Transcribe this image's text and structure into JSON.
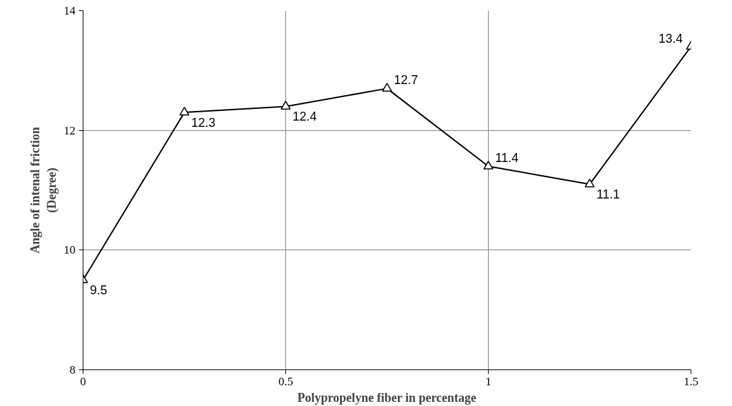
{
  "chart_data": {
    "type": "line",
    "xlabel": "Polypropelyne fiber in percentage",
    "ylabel": "Angle of intenal friction\n(Degree)",
    "x": [
      0,
      0.25,
      0.5,
      0.75,
      1,
      1.25,
      1.5
    ],
    "series": [
      {
        "color": "#000000",
        "values": [
          9.5,
          12.3,
          12.4,
          12.7,
          11.4,
          11.1,
          13.4
        ]
      }
    ],
    "xlim": [
      0,
      1.5
    ],
    "xticks": [
      0,
      0.5,
      1,
      1.5
    ],
    "ylim": [
      8,
      14
    ],
    "yticks": [
      8,
      10,
      12,
      14
    ],
    "grid": true,
    "marker": "triangle",
    "line_style": "solid",
    "data_labels": true
  }
}
